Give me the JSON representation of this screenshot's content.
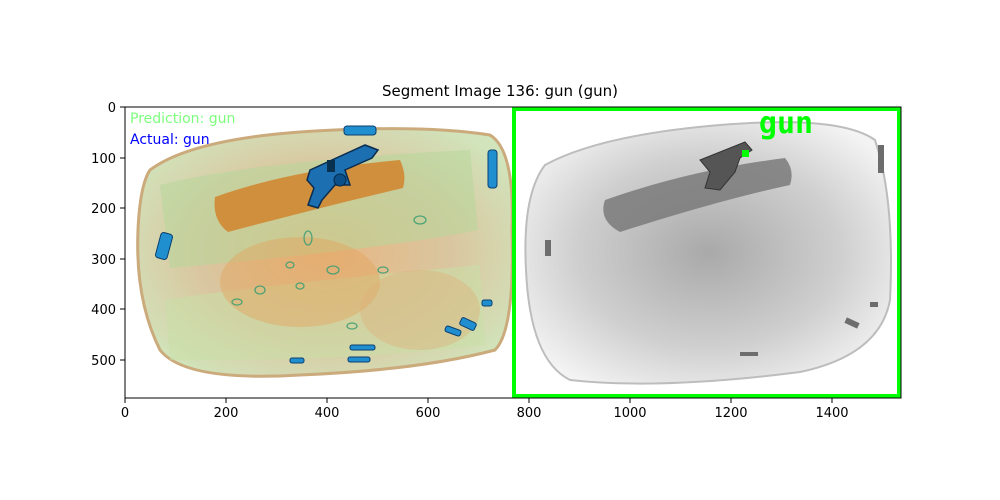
{
  "figure": {
    "title": "Segment Image 136: gun (gun)",
    "overlay": {
      "prediction_text": "Prediction: gun",
      "actual_text": "Actual: gun",
      "detection_label": "gun",
      "prediction_color": "#7dff7d",
      "actual_color": "#0000ff",
      "box_color": "#00ff00"
    },
    "x_ticks": [
      "0",
      "200",
      "400",
      "600",
      "800",
      "1000",
      "1200",
      "1400"
    ],
    "y_ticks": [
      "0",
      "100",
      "200",
      "300",
      "400",
      "500"
    ],
    "x_range": [
      0,
      1536
    ],
    "y_range": [
      576,
      0
    ]
  }
}
